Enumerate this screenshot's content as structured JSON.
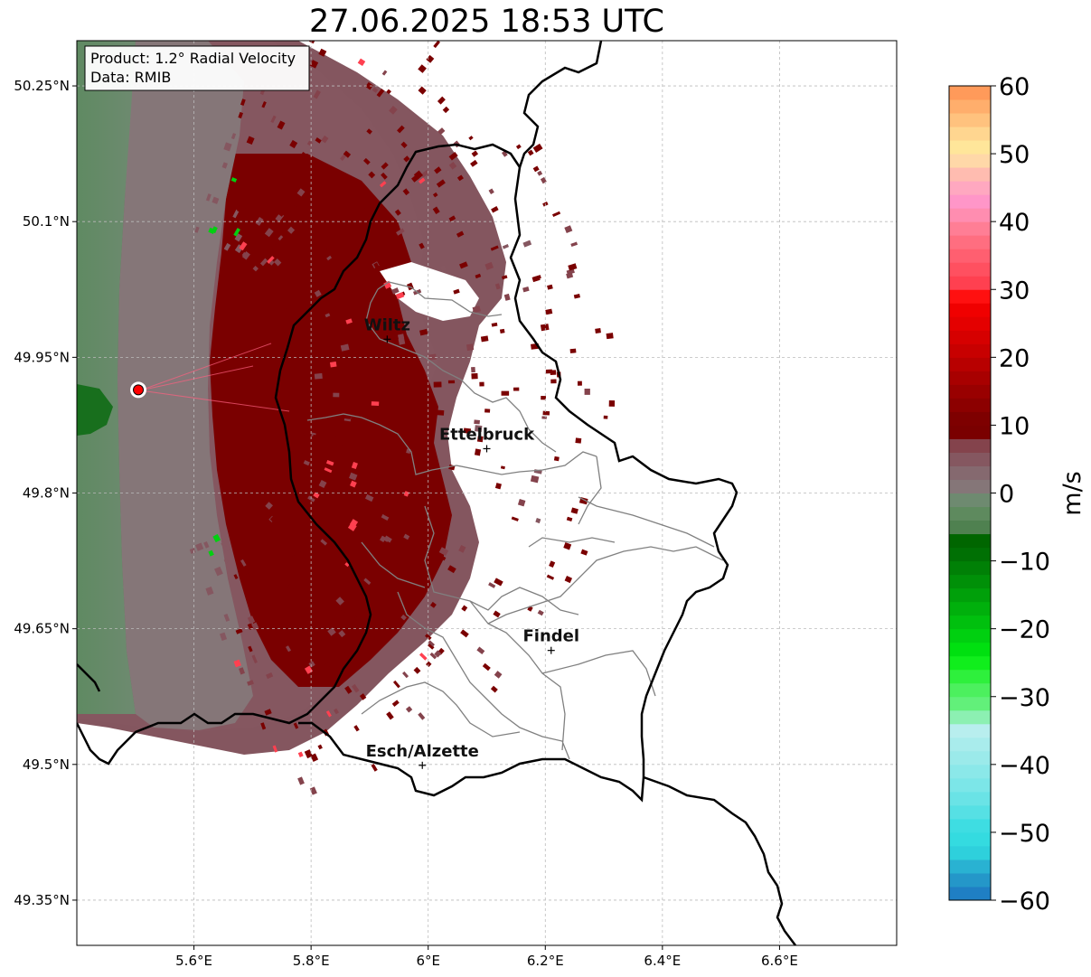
{
  "title": "27.06.2025 18:53 UTC",
  "info_box": {
    "product": "Product: 1.2° Radial Velocity",
    "data_source": "Data: RMIB"
  },
  "map": {
    "lon_range": [
      5.4,
      6.8
    ],
    "lat_range": [
      49.3,
      50.3
    ],
    "lon_ticks": [
      {
        "value": 5.6,
        "label": "5.6°E"
      },
      {
        "value": 5.8,
        "label": "5.8°E"
      },
      {
        "value": 6.0,
        "label": "6°E"
      },
      {
        "value": 6.2,
        "label": "6.2°E"
      },
      {
        "value": 6.4,
        "label": "6.4°E"
      },
      {
        "value": 6.6,
        "label": "6.6°E"
      }
    ],
    "lat_ticks": [
      {
        "value": 50.25,
        "label": "50.25°N"
      },
      {
        "value": 50.1,
        "label": "50.1°N"
      },
      {
        "value": 49.95,
        "label": "49.95°N"
      },
      {
        "value": 49.8,
        "label": "49.8°N"
      },
      {
        "value": 49.65,
        "label": "49.65°N"
      },
      {
        "value": 49.5,
        "label": "49.5°N"
      },
      {
        "value": 49.35,
        "label": "49.35°N"
      }
    ],
    "grid": true,
    "radar_site": {
      "lon": 5.505,
      "lat": 49.914
    },
    "cities": [
      {
        "name": "Wiltz",
        "lon": 5.93,
        "lat": 49.97
      },
      {
        "name": "Ettelbruck",
        "lon": 6.1,
        "lat": 49.849
      },
      {
        "name": "Findel",
        "lon": 6.21,
        "lat": 49.626
      },
      {
        "name": "Esch/Alzette",
        "lon": 5.99,
        "lat": 49.499
      }
    ]
  },
  "colorbar": {
    "label": "m/s",
    "range": [
      -60,
      60
    ],
    "ticks": [
      {
        "value": 60,
        "label": "60"
      },
      {
        "value": 50,
        "label": "50"
      },
      {
        "value": 40,
        "label": "40"
      },
      {
        "value": 30,
        "label": "30"
      },
      {
        "value": 20,
        "label": "20"
      },
      {
        "value": 10,
        "label": "10"
      },
      {
        "value": 0,
        "label": "0"
      },
      {
        "value": -10,
        "label": "−10"
      },
      {
        "value": -20,
        "label": "−20"
      },
      {
        "value": -30,
        "label": "−30"
      },
      {
        "value": -40,
        "label": "−40"
      },
      {
        "value": -50,
        "label": "−50"
      },
      {
        "value": -60,
        "label": "−60"
      }
    ],
    "bands": [
      {
        "from": -60,
        "to": -58,
        "color": "#1f7fc4"
      },
      {
        "from": -58,
        "to": -56,
        "color": "#2497c9"
      },
      {
        "from": -56,
        "to": -54,
        "color": "#29b2d2"
      },
      {
        "from": -54,
        "to": -52,
        "color": "#2ed0dc"
      },
      {
        "from": -52,
        "to": -50,
        "color": "#34dbe0"
      },
      {
        "from": -50,
        "to": -48,
        "color": "#3edde2"
      },
      {
        "from": -48,
        "to": -46,
        "color": "#56e0e4"
      },
      {
        "from": -46,
        "to": -44,
        "color": "#6ae3e6"
      },
      {
        "from": -44,
        "to": -42,
        "color": "#7ce6e8"
      },
      {
        "from": -42,
        "to": -40,
        "color": "#8be8e9"
      },
      {
        "from": -40,
        "to": -38,
        "color": "#9beaea"
      },
      {
        "from": -38,
        "to": -36,
        "color": "#a9ecec"
      },
      {
        "from": -36,
        "to": -34,
        "color": "#b8eeee"
      },
      {
        "from": -34,
        "to": -32,
        "color": "#8cf0b2"
      },
      {
        "from": -32,
        "to": -30,
        "color": "#62f07a"
      },
      {
        "from": -30,
        "to": -28,
        "color": "#4cf05e"
      },
      {
        "from": -28,
        "to": -26,
        "color": "#2ef03c"
      },
      {
        "from": -26,
        "to": -24,
        "color": "#10ee1c"
      },
      {
        "from": -24,
        "to": -22,
        "color": "#00e010"
      },
      {
        "from": -22,
        "to": -20,
        "color": "#00d010"
      },
      {
        "from": -20,
        "to": -18,
        "color": "#00c00e"
      },
      {
        "from": -18,
        "to": -16,
        "color": "#00b00c"
      },
      {
        "from": -16,
        "to": -14,
        "color": "#00a00a"
      },
      {
        "from": -14,
        "to": -12,
        "color": "#009008"
      },
      {
        "from": -12,
        "to": -10,
        "color": "#008006"
      },
      {
        "from": -10,
        "to": -8,
        "color": "#007004"
      },
      {
        "from": -8,
        "to": -6,
        "color": "#006600"
      },
      {
        "from": -6,
        "to": -4,
        "color": "#4f8150"
      },
      {
        "from": -4,
        "to": -2,
        "color": "#5e8a5e"
      },
      {
        "from": -2,
        "to": 0,
        "color": "#6e8a70"
      },
      {
        "from": 0,
        "to": 2,
        "color": "#857678"
      },
      {
        "from": 2,
        "to": 4,
        "color": "#85696f"
      },
      {
        "from": 4,
        "to": 6,
        "color": "#855760"
      },
      {
        "from": 6,
        "to": 8,
        "color": "#84434c"
      },
      {
        "from": 8,
        "to": 10,
        "color": "#7a0000"
      },
      {
        "from": 10,
        "to": 12,
        "color": "#7e0000"
      },
      {
        "from": 12,
        "to": 14,
        "color": "#8c0000"
      },
      {
        "from": 14,
        "to": 16,
        "color": "#990000"
      },
      {
        "from": 16,
        "to": 18,
        "color": "#a80000"
      },
      {
        "from": 18,
        "to": 20,
        "color": "#b80000"
      },
      {
        "from": 20,
        "to": 22,
        "color": "#c80000"
      },
      {
        "from": 22,
        "to": 24,
        "color": "#d60000"
      },
      {
        "from": 24,
        "to": 26,
        "color": "#e40000"
      },
      {
        "from": 26,
        "to": 28,
        "color": "#f00000"
      },
      {
        "from": 28,
        "to": 30,
        "color": "#ff1010"
      },
      {
        "from": 30,
        "to": 32,
        "color": "#ff4050"
      },
      {
        "from": 32,
        "to": 34,
        "color": "#ff5060"
      },
      {
        "from": 34,
        "to": 36,
        "color": "#ff5f70"
      },
      {
        "from": 36,
        "to": 38,
        "color": "#ff6e80"
      },
      {
        "from": 38,
        "to": 40,
        "color": "#ff7e95"
      },
      {
        "from": 40,
        "to": 42,
        "color": "#ff8db0"
      },
      {
        "from": 42,
        "to": 44,
        "color": "#ff96c8"
      },
      {
        "from": 44,
        "to": 46,
        "color": "#ffa8c0"
      },
      {
        "from": 46,
        "to": 48,
        "color": "#ffbcb0"
      },
      {
        "from": 48,
        "to": 50,
        "color": "#ffd8a8"
      },
      {
        "from": 50,
        "to": 52,
        "color": "#ffe69a"
      },
      {
        "from": 52,
        "to": 54,
        "color": "#ffd690"
      },
      {
        "from": 54,
        "to": 56,
        "color": "#ffc27e"
      },
      {
        "from": 56,
        "to": 58,
        "color": "#ffae6c"
      },
      {
        "from": 58,
        "to": 60,
        "color": "#ff9a5a"
      }
    ]
  },
  "colors": {
    "border": "#000000",
    "canton_border": "#808080",
    "grid": "#bbbbbb",
    "radar_marker": "#ff0000"
  }
}
